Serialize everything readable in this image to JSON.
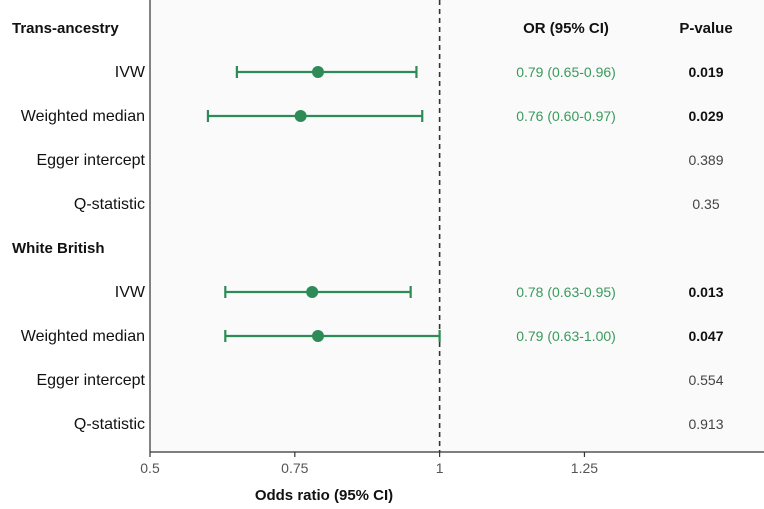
{
  "chart_data": {
    "type": "forest",
    "xlabel": "Odds ratio (95% CI)",
    "xlim": [
      0.5,
      1.56
    ],
    "xticks": [
      {
        "value": 0.5,
        "label": "0.5"
      },
      {
        "value": 0.75,
        "label": "0.75"
      },
      {
        "value": 1,
        "label": "1"
      },
      {
        "value": 1.25,
        "label": "1.25"
      }
    ],
    "reference_line": 1,
    "columns": {
      "or_header": "OR (95% CI)",
      "p_header": "P-value"
    },
    "rows": [
      {
        "label": "Trans-ancestry",
        "header": true
      },
      {
        "label": "IVW",
        "or": 0.79,
        "lo": 0.65,
        "hi": 0.96,
        "or_text": "0.79 (0.65-0.96)",
        "p": "0.019",
        "bold_p": true
      },
      {
        "label": "Weighted median",
        "or": 0.76,
        "lo": 0.6,
        "hi": 0.97,
        "or_text": "0.76 (0.60-0.97)",
        "p": "0.029",
        "bold_p": true
      },
      {
        "label": "Egger intercept",
        "p": "0.389",
        "bold_p": false
      },
      {
        "label": "Q-statistic",
        "p": "0.35",
        "bold_p": false
      },
      {
        "label": "White British",
        "header": true
      },
      {
        "label": "IVW",
        "or": 0.78,
        "lo": 0.63,
        "hi": 0.95,
        "or_text": "0.78 (0.63-0.95)",
        "p": "0.013",
        "bold_p": true
      },
      {
        "label": "Weighted median",
        "or": 0.79,
        "lo": 0.63,
        "hi": 1.0,
        "or_text": "0.79 (0.63-1.00)",
        "p": "0.047",
        "bold_p": true
      },
      {
        "label": "Egger intercept",
        "p": "0.554",
        "bold_p": false
      },
      {
        "label": "Q-statistic",
        "p": "0.913",
        "bold_p": false
      }
    ],
    "colors": {
      "estimate": "#2e8b57",
      "or_text": "#3a9a5e",
      "panel_bg": "#fafafa"
    }
  }
}
